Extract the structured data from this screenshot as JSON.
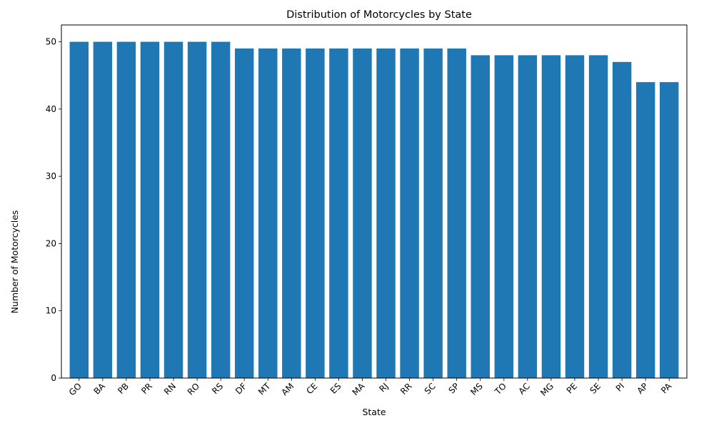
{
  "chart_data": {
    "type": "bar",
    "title": "Distribution of Motorcycles by State",
    "xlabel": "State",
    "ylabel": "Number of Motorcycles",
    "categories": [
      "GO",
      "BA",
      "PB",
      "PR",
      "RN",
      "RO",
      "RS",
      "DF",
      "MT",
      "AM",
      "CE",
      "ES",
      "MA",
      "RJ",
      "RR",
      "SC",
      "SP",
      "MS",
      "TO",
      "AC",
      "MG",
      "PE",
      "SE",
      "PI",
      "AP",
      "PA"
    ],
    "values": [
      50,
      50,
      50,
      50,
      50,
      50,
      50,
      49,
      49,
      49,
      49,
      49,
      49,
      49,
      49,
      49,
      49,
      48,
      48,
      48,
      48,
      48,
      48,
      47,
      44,
      44
    ],
    "ylim": [
      0,
      52.5
    ],
    "yticks": [
      0,
      10,
      20,
      30,
      40,
      50
    ],
    "xtick_rotation": 45,
    "bar_color": "#1f77b4",
    "grid": false,
    "legend": "none"
  }
}
